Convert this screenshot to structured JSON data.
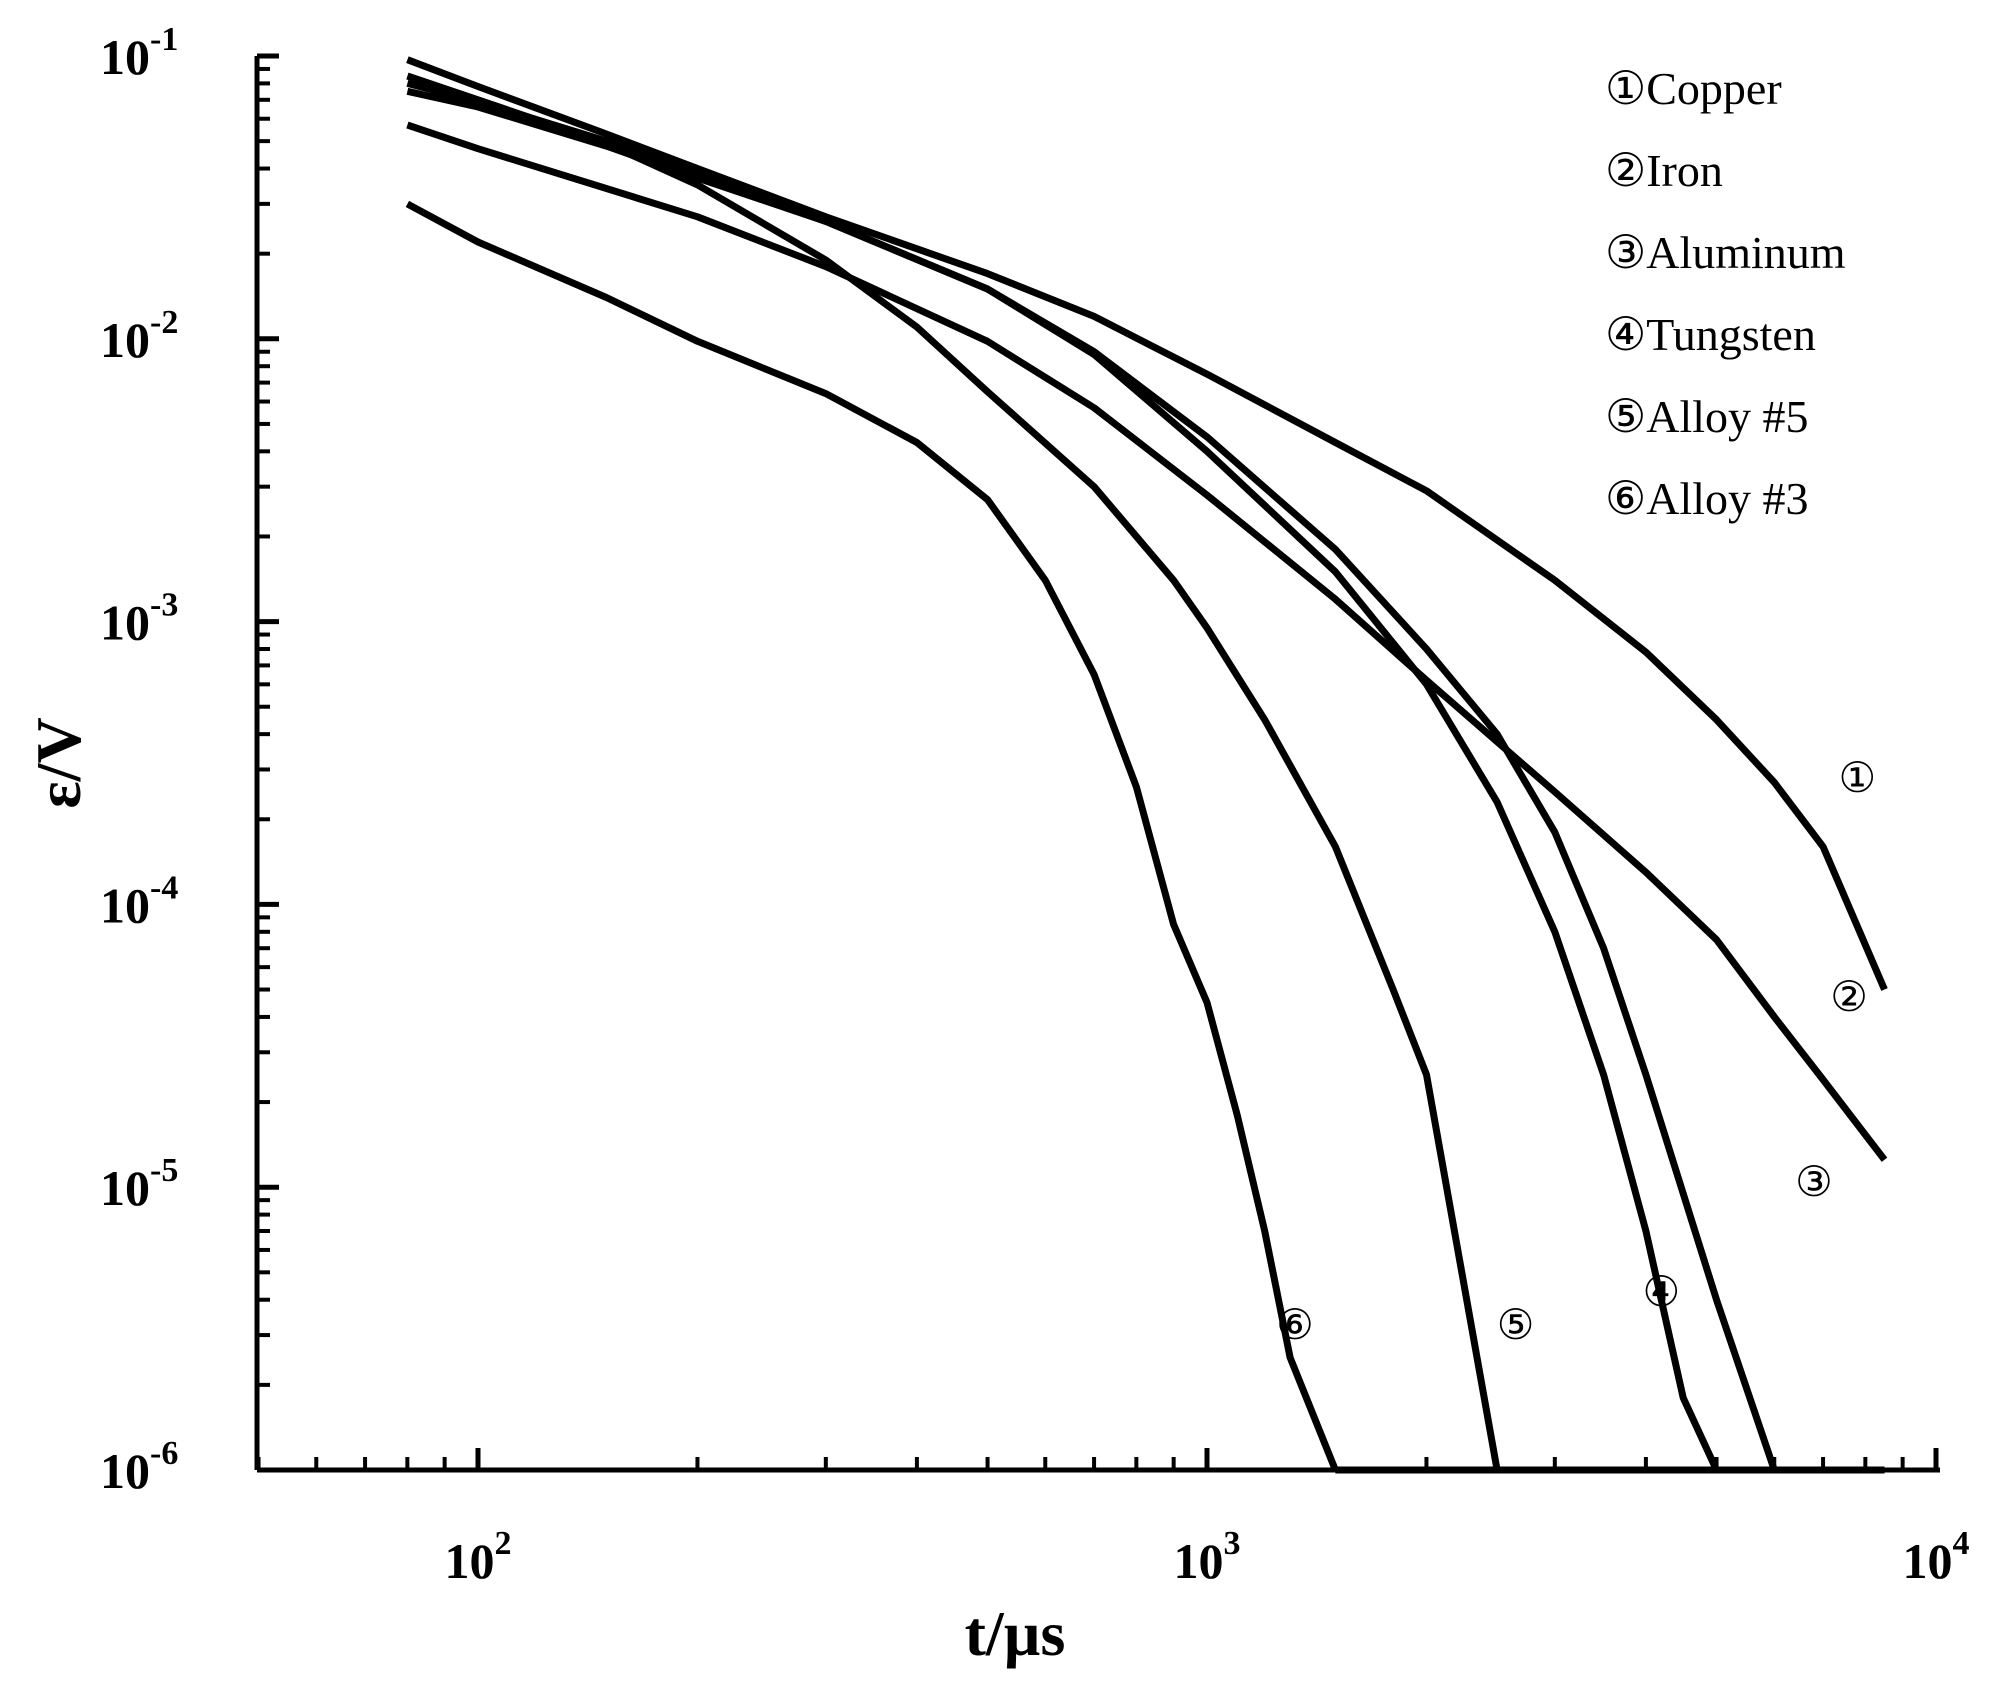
{
  "chart_data": {
    "type": "line",
    "x_scale": "log",
    "y_scale": "log",
    "xlim": [
      50,
      10000
    ],
    "ylim": [
      1e-06,
      0.1
    ],
    "xlabel": "t/µs",
    "ylabel": "ε/V",
    "x_ticks": [
      {
        "value": 100,
        "base": "10",
        "exp": "2"
      },
      {
        "value": 1000,
        "base": "10",
        "exp": "3"
      },
      {
        "value": 10000,
        "base": "10",
        "exp": "4"
      }
    ],
    "y_ticks": [
      {
        "value": 0.1,
        "base": "10",
        "exp": "-1"
      },
      {
        "value": 0.01,
        "base": "10",
        "exp": "-2"
      },
      {
        "value": 0.001,
        "base": "10",
        "exp": "-3"
      },
      {
        "value": 0.0001,
        "base": "10",
        "exp": "-4"
      },
      {
        "value": 1e-05,
        "base": "10",
        "exp": "-5"
      },
      {
        "value": 1e-06,
        "base": "10",
        "exp": "-6"
      }
    ],
    "grid": false,
    "legend_position": "top-right",
    "series": [
      {
        "name": "Copper",
        "legend_text": "①Copper",
        "marker": "①",
        "points": [
          [
            80,
            0.097
          ],
          [
            100,
            0.078
          ],
          [
            150,
            0.053
          ],
          [
            200,
            0.04
          ],
          [
            300,
            0.027
          ],
          [
            500,
            0.017
          ],
          [
            700,
            0.012
          ],
          [
            1000,
            0.0075
          ],
          [
            1500,
            0.0043
          ],
          [
            2000,
            0.0029
          ],
          [
            3000,
            0.0014
          ],
          [
            4000,
            0.00078
          ],
          [
            5000,
            0.00045
          ],
          [
            6000,
            0.00027
          ],
          [
            7000,
            0.00016
          ],
          [
            8500,
            5e-05
          ]
        ]
      },
      {
        "name": "Iron",
        "legend_text": "②Iron",
        "marker": "②",
        "points": [
          [
            80,
            0.057
          ],
          [
            100,
            0.047
          ],
          [
            200,
            0.027
          ],
          [
            300,
            0.018
          ],
          [
            500,
            0.0098
          ],
          [
            700,
            0.0057
          ],
          [
            1000,
            0.0028
          ],
          [
            1500,
            0.0012
          ],
          [
            2000,
            0.00062
          ],
          [
            3000,
            0.00025
          ],
          [
            4000,
            0.00013
          ],
          [
            5000,
            7.5e-05
          ],
          [
            6000,
            4e-05
          ],
          [
            7000,
            2.4e-05
          ],
          [
            8500,
            1.25e-05
          ]
        ]
      },
      {
        "name": "Aluminum",
        "legend_text": "③Aluminum",
        "marker": "③",
        "points": [
          [
            80,
            0.075
          ],
          [
            100,
            0.066
          ],
          [
            150,
            0.048
          ],
          [
            200,
            0.037
          ],
          [
            300,
            0.026
          ],
          [
            500,
            0.015
          ],
          [
            700,
            0.009
          ],
          [
            1000,
            0.0045
          ],
          [
            1500,
            0.0018
          ],
          [
            2000,
            0.0008
          ],
          [
            2500,
            0.0004
          ],
          [
            3000,
            0.00018
          ],
          [
            3500,
            7e-05
          ],
          [
            4000,
            2.5e-05
          ],
          [
            5000,
            4e-06
          ],
          [
            6000,
            1e-06
          ]
        ]
      },
      {
        "name": "Tungsten",
        "legend_text": "④Tungsten",
        "marker": "④",
        "points": [
          [
            80,
            0.08
          ],
          [
            100,
            0.069
          ],
          [
            150,
            0.05
          ],
          [
            200,
            0.038
          ],
          [
            300,
            0.026
          ],
          [
            500,
            0.015
          ],
          [
            700,
            0.0088
          ],
          [
            1000,
            0.004
          ],
          [
            1500,
            0.0015
          ],
          [
            2000,
            0.0006
          ],
          [
            2500,
            0.00023
          ],
          [
            3000,
            8e-05
          ],
          [
            3500,
            2.5e-05
          ],
          [
            4000,
            7e-06
          ],
          [
            4500,
            1.8e-06
          ],
          [
            5000,
            1e-06
          ]
        ]
      },
      {
        "name": "Alloy #5",
        "legend_text": "⑤Alloy #5",
        "marker": "⑤",
        "points": [
          [
            80,
            0.085
          ],
          [
            100,
            0.07
          ],
          [
            150,
            0.049
          ],
          [
            200,
            0.035
          ],
          [
            300,
            0.019
          ],
          [
            400,
            0.011
          ],
          [
            500,
            0.0065
          ],
          [
            700,
            0.003
          ],
          [
            900,
            0.0014
          ],
          [
            1000,
            0.00095
          ],
          [
            1200,
            0.00045
          ],
          [
            1500,
            0.00016
          ],
          [
            1800,
            5e-05
          ],
          [
            2000,
            2.5e-05
          ],
          [
            2500,
            1e-06
          ]
        ]
      },
      {
        "name": "Alloy #3",
        "legend_text": "⑥Alloy #3",
        "marker": "⑥",
        "points": [
          [
            80,
            0.03
          ],
          [
            100,
            0.022
          ],
          [
            150,
            0.014
          ],
          [
            200,
            0.0098
          ],
          [
            300,
            0.0064
          ],
          [
            400,
            0.0043
          ],
          [
            500,
            0.0027
          ],
          [
            600,
            0.0014
          ],
          [
            700,
            0.00065
          ],
          [
            800,
            0.00026
          ],
          [
            900,
            8.5e-05
          ],
          [
            1000,
            4.5e-05
          ],
          [
            1100,
            1.8e-05
          ],
          [
            1200,
            7e-06
          ],
          [
            1300,
            2.5e-06
          ],
          [
            1500,
            1e-06
          ]
        ]
      }
    ],
    "curve_label_positions": [
      {
        "marker": "①",
        "x": 7800,
        "y": 0.00025
      },
      {
        "marker": "②",
        "x": 7600,
        "y": 4.2e-05
      },
      {
        "marker": "③",
        "x": 6800,
        "y": 9.3e-06
      },
      {
        "marker": "④",
        "x": 4200,
        "y": 3.8e-06
      },
      {
        "marker": "⑤",
        "x": 2650,
        "y": 2.9e-06
      },
      {
        "marker": "⑥",
        "x": 1320,
        "y": 2.9e-06
      }
    ]
  }
}
